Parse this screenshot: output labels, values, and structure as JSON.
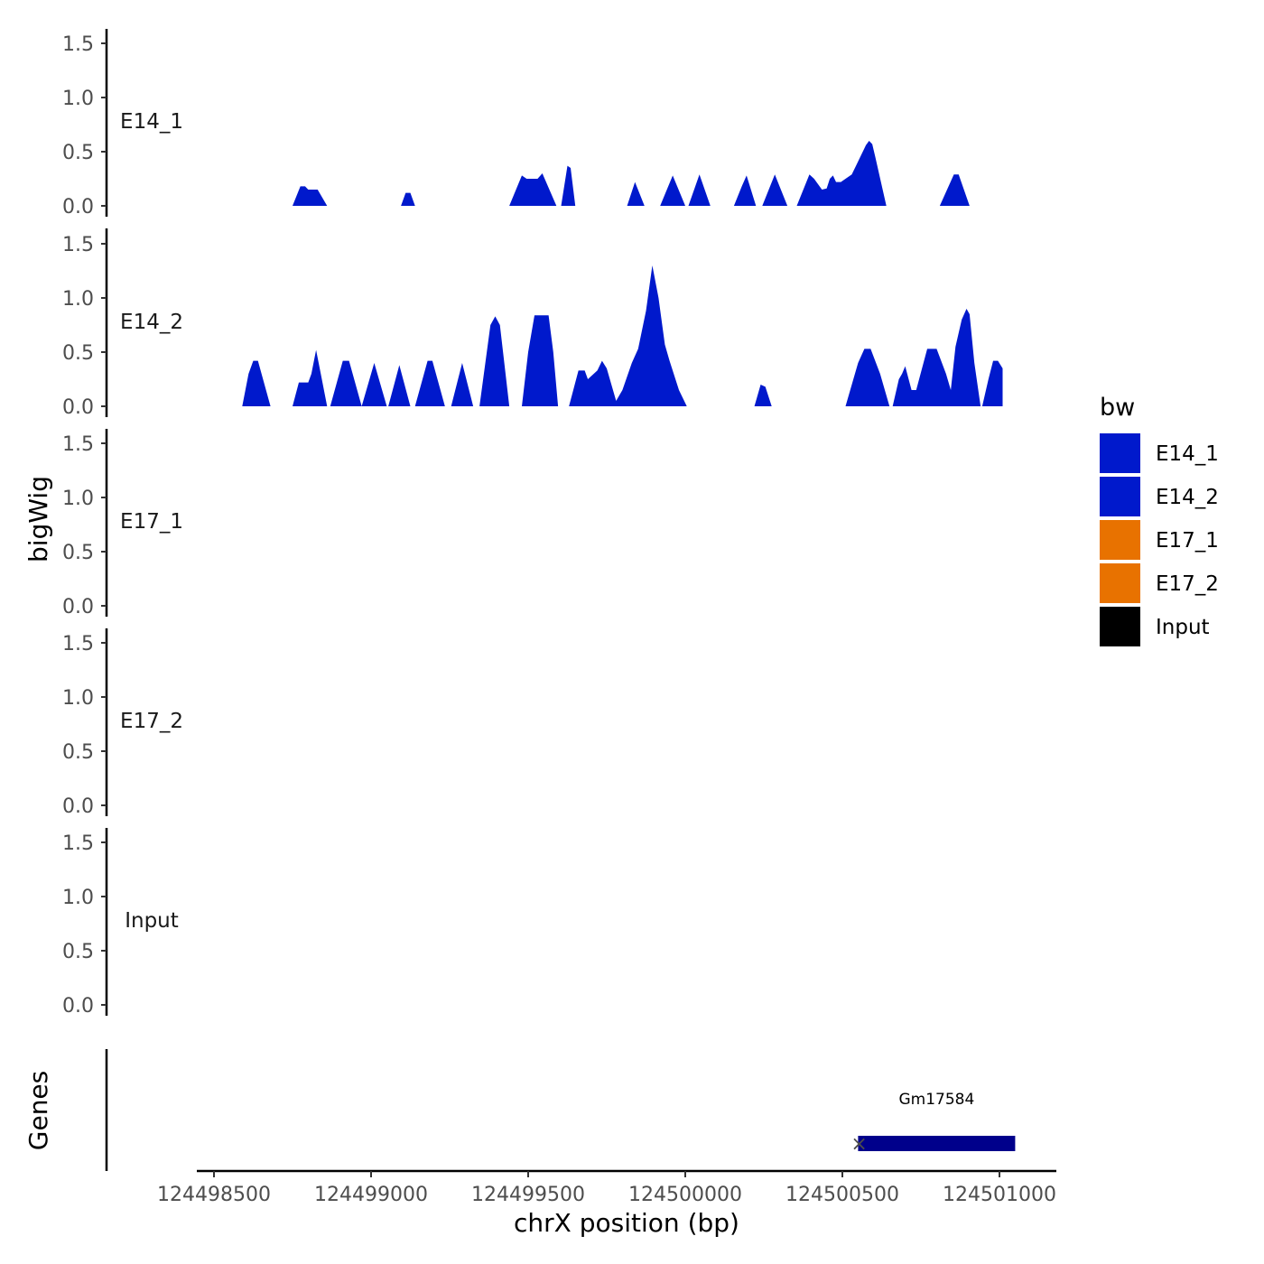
{
  "chart_data": {
    "type": "area",
    "ylabel": "bigWig",
    "xlabel": "chrX position (bp)",
    "ylim": [
      0,
      1.6
    ],
    "y_ticks": [
      "0.0",
      "0.5",
      "1.0",
      "1.5"
    ],
    "x_range": [
      124498500,
      124501200
    ],
    "x_ticks": [
      "124498500",
      "124499000",
      "124499500",
      "124500000",
      "124500500",
      "124501000"
    ],
    "legend": {
      "title": "bw",
      "entries": [
        {
          "name": "E14_1",
          "color": "#0019CC"
        },
        {
          "name": "E14_2",
          "color": "#0019CC"
        },
        {
          "name": "E17_1",
          "color": "#E87200"
        },
        {
          "name": "E17_2",
          "color": "#E87200"
        },
        {
          "name": "Input",
          "color": "#000000"
        }
      ]
    },
    "series": [
      {
        "name": "E14_1",
        "color": "#0019CC",
        "points": [
          [
            124498750,
            0
          ],
          [
            124498775,
            0.18
          ],
          [
            124498790,
            0.18
          ],
          [
            124498800,
            0.15
          ],
          [
            124498830,
            0.15
          ],
          [
            124498860,
            0
          ],
          [
            124499095,
            0
          ],
          [
            124499110,
            0.12
          ],
          [
            124499125,
            0.12
          ],
          [
            124499140,
            0
          ],
          [
            124499440,
            0
          ],
          [
            124499480,
            0.28
          ],
          [
            124499495,
            0.25
          ],
          [
            124499530,
            0.25
          ],
          [
            124499545,
            0.3
          ],
          [
            124499590,
            0
          ],
          [
            124499605,
            0
          ],
          [
            124499625,
            0.37
          ],
          [
            124499635,
            0.35
          ],
          [
            124499650,
            0
          ],
          [
            124499815,
            0
          ],
          [
            124499840,
            0.22
          ],
          [
            124499870,
            0
          ],
          [
            124499920,
            0
          ],
          [
            124499960,
            0.28
          ],
          [
            124500000,
            0
          ],
          [
            124500010,
            0
          ],
          [
            124500045,
            0.29
          ],
          [
            124500080,
            0
          ],
          [
            124500155,
            0
          ],
          [
            124500180,
            0.18
          ],
          [
            124500195,
            0.28
          ],
          [
            124500225,
            0
          ],
          [
            124500245,
            0
          ],
          [
            124500285,
            0.29
          ],
          [
            124500325,
            0
          ],
          [
            124500355,
            0
          ],
          [
            124500395,
            0.29
          ],
          [
            124500410,
            0.25
          ],
          [
            124500435,
            0.15
          ],
          [
            124500450,
            0.16
          ],
          [
            124500460,
            0.25
          ],
          [
            124500470,
            0.28
          ],
          [
            124500480,
            0.22
          ],
          [
            124500495,
            0.22
          ],
          [
            124500510,
            0.25
          ],
          [
            124500530,
            0.29
          ],
          [
            124500545,
            0.38
          ],
          [
            124500575,
            0.56
          ],
          [
            124500585,
            0.6
          ],
          [
            124500595,
            0.57
          ],
          [
            124500605,
            0.45
          ],
          [
            124500640,
            0
          ],
          [
            124500810,
            0
          ],
          [
            124500855,
            0.29
          ],
          [
            124500870,
            0.29
          ],
          [
            124500905,
            0
          ]
        ]
      },
      {
        "name": "E14_2",
        "color": "#0019CC",
        "points": [
          [
            124498590,
            0
          ],
          [
            124498610,
            0.3
          ],
          [
            124498625,
            0.42
          ],
          [
            124498640,
            0.42
          ],
          [
            124498680,
            0
          ],
          [
            124498750,
            0
          ],
          [
            124498770,
            0.22
          ],
          [
            124498800,
            0.22
          ],
          [
            124498810,
            0.3
          ],
          [
            124498825,
            0.52
          ],
          [
            124498840,
            0.3
          ],
          [
            124498860,
            0
          ],
          [
            124498870,
            0
          ],
          [
            124498910,
            0.42
          ],
          [
            124498930,
            0.42
          ],
          [
            124498970,
            0
          ],
          [
            124498970,
            0
          ],
          [
            124499010,
            0.4
          ],
          [
            124499050,
            0
          ],
          [
            124499055,
            0
          ],
          [
            124499090,
            0.38
          ],
          [
            124499125,
            0
          ],
          [
            124499140,
            0
          ],
          [
            124499180,
            0.42
          ],
          [
            124499195,
            0.42
          ],
          [
            124499235,
            0
          ],
          [
            124499255,
            0
          ],
          [
            124499290,
            0.4
          ],
          [
            124499325,
            0
          ],
          [
            124499345,
            0
          ],
          [
            124499380,
            0.75
          ],
          [
            124499395,
            0.83
          ],
          [
            124499410,
            0.75
          ],
          [
            124499440,
            0
          ],
          [
            124499480,
            0
          ],
          [
            124499500,
            0.5
          ],
          [
            124499520,
            0.84
          ],
          [
            124499565,
            0.84
          ],
          [
            124499580,
            0.5
          ],
          [
            124499595,
            0
          ],
          [
            124499630,
            0
          ],
          [
            124499660,
            0.33
          ],
          [
            124499680,
            0.33
          ],
          [
            124499690,
            0.25
          ],
          [
            124499720,
            0.33
          ],
          [
            124499735,
            0.42
          ],
          [
            124499750,
            0.35
          ],
          [
            124499780,
            0.05
          ],
          [
            124499800,
            0.15
          ],
          [
            124499830,
            0.4
          ],
          [
            124499850,
            0.53
          ],
          [
            124499875,
            0.88
          ],
          [
            124499895,
            1.3
          ],
          [
            124499915,
            1.0
          ],
          [
            124499935,
            0.57
          ],
          [
            124499950,
            0.42
          ],
          [
            124499980,
            0.15
          ],
          [
            124500005,
            0
          ],
          [
            124500220,
            0
          ],
          [
            124500240,
            0.2
          ],
          [
            124500255,
            0.18
          ],
          [
            124500275,
            0
          ],
          [
            124500510,
            0
          ],
          [
            124500550,
            0.4
          ],
          [
            124500570,
            0.53
          ],
          [
            124500590,
            0.53
          ],
          [
            124500620,
            0.3
          ],
          [
            124500650,
            0
          ],
          [
            124500660,
            0
          ],
          [
            124500680,
            0.25
          ],
          [
            124500690,
            0.3
          ],
          [
            124500700,
            0.37
          ],
          [
            124500720,
            0.15
          ],
          [
            124500735,
            0.15
          ],
          [
            124500770,
            0.53
          ],
          [
            124500800,
            0.53
          ],
          [
            124500830,
            0.3
          ],
          [
            124500845,
            0.15
          ],
          [
            124500860,
            0.55
          ],
          [
            124500880,
            0.8
          ],
          [
            124500895,
            0.9
          ],
          [
            124500905,
            0.85
          ],
          [
            124500920,
            0.4
          ],
          [
            124500940,
            0
          ],
          [
            124500945,
            0
          ],
          [
            124500965,
            0.25
          ],
          [
            124500980,
            0.42
          ],
          [
            124500995,
            0.42
          ],
          [
            124501010,
            0.35
          ],
          [
            124501010,
            0
          ]
        ]
      },
      {
        "name": "E17_1",
        "color": "#E87200"
      },
      {
        "name": "E17_2",
        "color": "#E87200"
      },
      {
        "name": "Input",
        "color": "#000000"
      }
    ],
    "genes_track": {
      "label": "Genes",
      "genes": [
        {
          "name": "Gm17584",
          "start": 124500550,
          "end": 124501050,
          "strand": "-",
          "color": "#00008B"
        }
      ]
    }
  }
}
